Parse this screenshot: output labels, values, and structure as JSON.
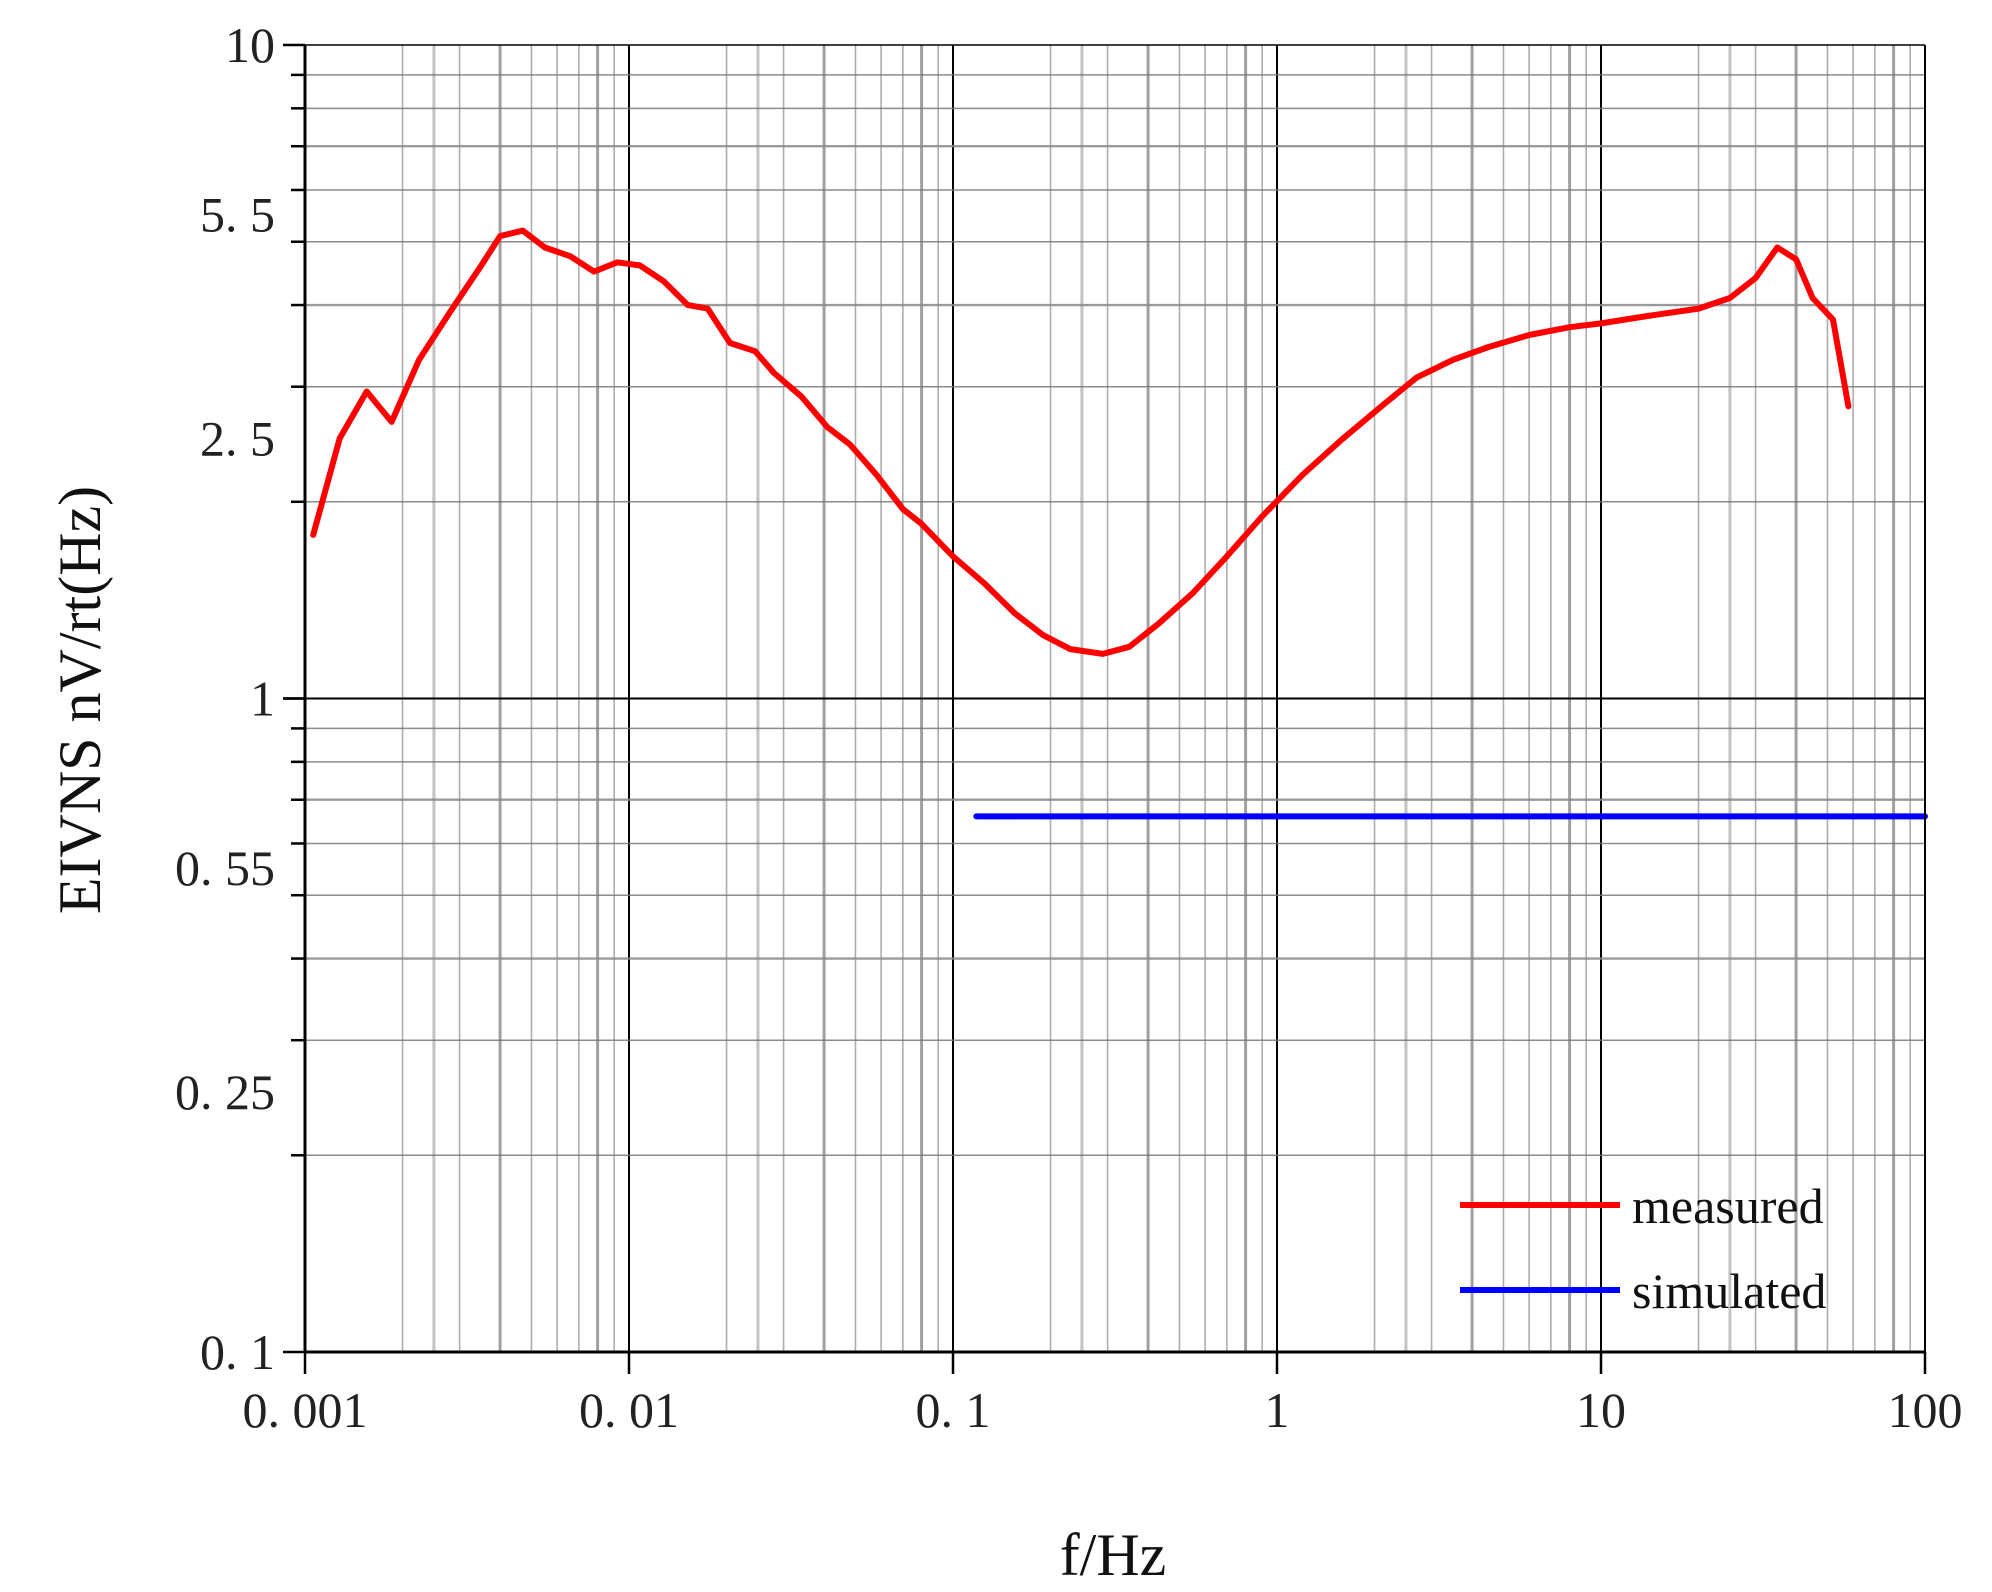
{
  "chart_data": {
    "type": "line",
    "title": "",
    "xlabel": "f/Hz",
    "ylabel": "EIVNS nV/rt(Hz)",
    "xscale": "log",
    "yscale": "log",
    "xlim": [
      0.001,
      100
    ],
    "ylim": [
      0.1,
      10
    ],
    "grid": true,
    "legend_position": "bottom-right",
    "x_ticks": [
      {
        "value": 0.001,
        "label": "0. 001"
      },
      {
        "value": 0.01,
        "label": "0. 01"
      },
      {
        "value": 0.1,
        "label": "0. 1"
      },
      {
        "value": 1,
        "label": "1"
      },
      {
        "value": 10,
        "label": "10"
      },
      {
        "value": 100,
        "label": "100"
      }
    ],
    "y_ticks": [
      {
        "value": 0.1,
        "label": "0. 1"
      },
      {
        "value": 0.25,
        "label": "0. 25"
      },
      {
        "value": 0.55,
        "label": "0. 55"
      },
      {
        "value": 1,
        "label": "1"
      },
      {
        "value": 2.5,
        "label": "2. 5"
      },
      {
        "value": 5.5,
        "label": "5. 5"
      },
      {
        "value": 10,
        "label": "10"
      }
    ],
    "series": [
      {
        "name": "measured",
        "color": "#ff0000",
        "points": [
          [
            0.00106,
            1.78
          ],
          [
            0.00128,
            2.5
          ],
          [
            0.00155,
            2.95
          ],
          [
            0.00185,
            2.65
          ],
          [
            0.00225,
            3.3
          ],
          [
            0.0028,
            3.9
          ],
          [
            0.0035,
            4.6
          ],
          [
            0.004,
            5.1
          ],
          [
            0.0047,
            5.2
          ],
          [
            0.0055,
            4.9
          ],
          [
            0.0066,
            4.75
          ],
          [
            0.0078,
            4.5
          ],
          [
            0.0092,
            4.65
          ],
          [
            0.0108,
            4.6
          ],
          [
            0.0128,
            4.35
          ],
          [
            0.0152,
            4.0
          ],
          [
            0.0175,
            3.95
          ],
          [
            0.0205,
            3.5
          ],
          [
            0.0245,
            3.4
          ],
          [
            0.028,
            3.15
          ],
          [
            0.034,
            2.9
          ],
          [
            0.041,
            2.6
          ],
          [
            0.048,
            2.45
          ],
          [
            0.058,
            2.2
          ],
          [
            0.07,
            1.95
          ],
          [
            0.08,
            1.85
          ],
          [
            0.1,
            1.65
          ],
          [
            0.125,
            1.5
          ],
          [
            0.155,
            1.35
          ],
          [
            0.19,
            1.25
          ],
          [
            0.23,
            1.19
          ],
          [
            0.29,
            1.17
          ],
          [
            0.35,
            1.2
          ],
          [
            0.43,
            1.3
          ],
          [
            0.55,
            1.45
          ],
          [
            0.7,
            1.65
          ],
          [
            0.9,
            1.9
          ],
          [
            1.2,
            2.2
          ],
          [
            1.6,
            2.5
          ],
          [
            2.1,
            2.8
          ],
          [
            2.7,
            3.1
          ],
          [
            3.5,
            3.3
          ],
          [
            4.5,
            3.45
          ],
          [
            6,
            3.6
          ],
          [
            8,
            3.7
          ],
          [
            10,
            3.75
          ],
          [
            14,
            3.85
          ],
          [
            20,
            3.95
          ],
          [
            25,
            4.1
          ],
          [
            30,
            4.4
          ],
          [
            35,
            4.9
          ],
          [
            40,
            4.7
          ],
          [
            45,
            4.1
          ],
          [
            52,
            3.8
          ],
          [
            58,
            2.8
          ]
        ]
      },
      {
        "name": "simulated",
        "color": "#0000ff",
        "points": [
          [
            0.118,
            0.66
          ],
          [
            100,
            0.66
          ]
        ]
      }
    ]
  }
}
